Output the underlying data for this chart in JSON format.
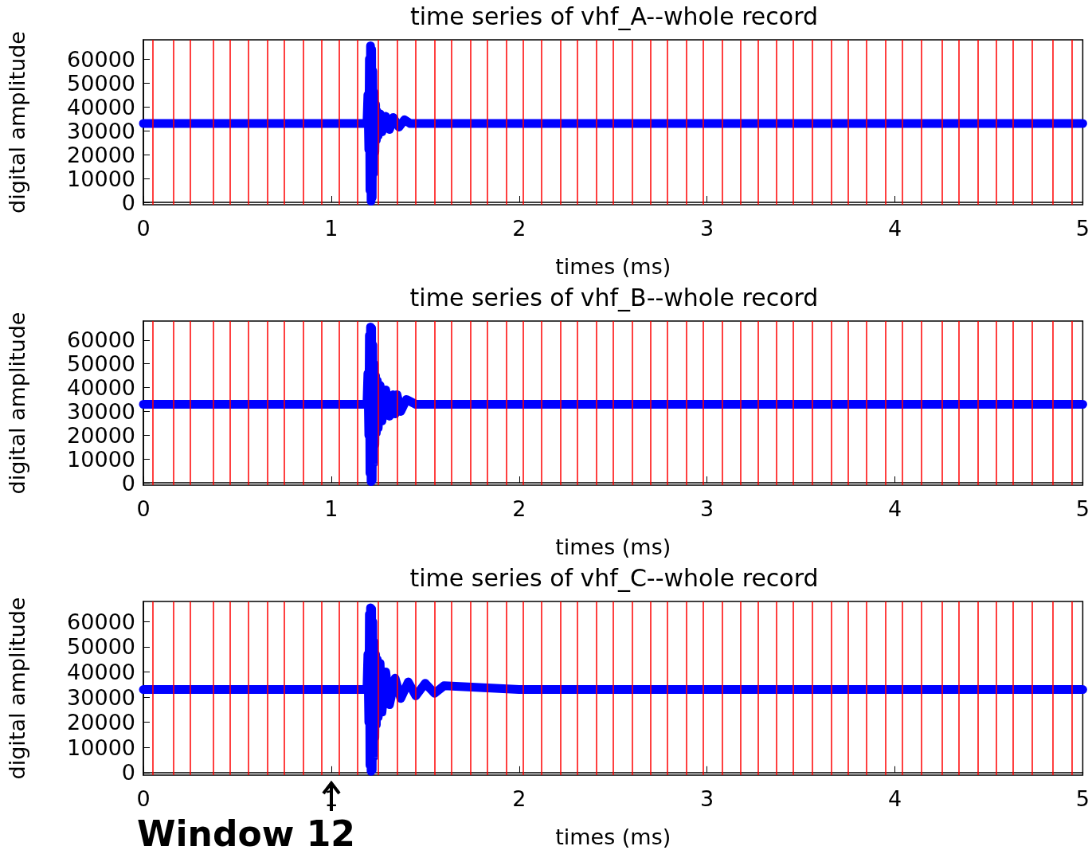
{
  "chart_data": [
    {
      "type": "line",
      "title": "time series of vhf_A--whole record",
      "xlabel": "times (ms)",
      "ylabel": "digital amplitude",
      "xlim": [
        0,
        5
      ],
      "xticks": [
        0,
        1,
        2,
        3,
        4,
        5
      ],
      "ylim": [
        -1000,
        68000
      ],
      "yticks": [
        0,
        10000,
        20000,
        30000,
        40000,
        50000,
        60000
      ],
      "series": [
        {
          "color": "#0000ff",
          "x": [
            0,
            1.0,
            1.19,
            1.195,
            1.2,
            1.203,
            1.206,
            1.209,
            1.212,
            1.215,
            1.218,
            1.221,
            1.224,
            1.228,
            1.232,
            1.236,
            1.24,
            1.245,
            1.25,
            1.26,
            1.27,
            1.29,
            1.31,
            1.33,
            1.36,
            1.39,
            1.42,
            2.0,
            3.0,
            4.0,
            5
          ],
          "values": [
            33000,
            33000,
            33000,
            45000,
            22000,
            60000,
            5000,
            65500,
            500,
            64000,
            2000,
            55000,
            12000,
            46000,
            21000,
            41000,
            26000,
            38000,
            28000,
            37000,
            29500,
            36000,
            30500,
            35500,
            31500,
            34500,
            33000,
            33000,
            33000,
            33000,
            33000
          ]
        }
      ],
      "ref_lines": [
        {
          "axis": "x",
          "value": 0.05,
          "color": "#ff0000"
        },
        {
          "axis": "x",
          "value": 0.16,
          "color": "#ff0000"
        },
        {
          "axis": "x",
          "value": 0.25,
          "color": "#ff0000"
        },
        {
          "axis": "x",
          "value": 0.37,
          "color": "#ff0000"
        },
        {
          "axis": "x",
          "value": 0.46,
          "color": "#ff0000"
        },
        {
          "axis": "x",
          "value": 0.56,
          "color": "#ff0000"
        },
        {
          "axis": "x",
          "value": 0.66,
          "color": "#ff0000"
        },
        {
          "axis": "x",
          "value": 0.75,
          "color": "#ff0000"
        },
        {
          "axis": "x",
          "value": 0.85,
          "color": "#ff0000"
        },
        {
          "axis": "x",
          "value": 0.95,
          "color": "#ff0000"
        },
        {
          "axis": "x",
          "value": 1.04,
          "color": "#ff0000"
        },
        {
          "axis": "x",
          "value": 1.14,
          "color": "#ff0000"
        },
        {
          "axis": "x",
          "value": 1.25,
          "color": "#ff0000"
        },
        {
          "axis": "x",
          "value": 1.35,
          "color": "#ff0000"
        },
        {
          "axis": "x",
          "value": 1.45,
          "color": "#ff0000"
        },
        {
          "axis": "x",
          "value": 1.55,
          "color": "#ff0000"
        },
        {
          "axis": "x",
          "value": 1.64,
          "color": "#ff0000"
        },
        {
          "axis": "x",
          "value": 1.74,
          "color": "#ff0000"
        },
        {
          "axis": "x",
          "value": 1.83,
          "color": "#ff0000"
        },
        {
          "axis": "x",
          "value": 1.93,
          "color": "#ff0000"
        },
        {
          "axis": "x",
          "value": 2.02,
          "color": "#ff0000"
        },
        {
          "axis": "x",
          "value": 2.12,
          "color": "#ff0000"
        },
        {
          "axis": "x",
          "value": 2.22,
          "color": "#ff0000"
        },
        {
          "axis": "x",
          "value": 2.31,
          "color": "#ff0000"
        },
        {
          "axis": "x",
          "value": 2.41,
          "color": "#ff0000"
        },
        {
          "axis": "x",
          "value": 2.5,
          "color": "#ff0000"
        },
        {
          "axis": "x",
          "value": 2.6,
          "color": "#ff0000"
        },
        {
          "axis": "x",
          "value": 2.7,
          "color": "#ff0000"
        },
        {
          "axis": "x",
          "value": 2.79,
          "color": "#ff0000"
        },
        {
          "axis": "x",
          "value": 2.89,
          "color": "#ff0000"
        },
        {
          "axis": "x",
          "value": 2.98,
          "color": "#ff0000"
        },
        {
          "axis": "x",
          "value": 3.08,
          "color": "#ff0000"
        },
        {
          "axis": "x",
          "value": 3.18,
          "color": "#ff0000"
        },
        {
          "axis": "x",
          "value": 3.27,
          "color": "#ff0000"
        },
        {
          "axis": "x",
          "value": 3.37,
          "color": "#ff0000"
        },
        {
          "axis": "x",
          "value": 3.46,
          "color": "#ff0000"
        },
        {
          "axis": "x",
          "value": 3.56,
          "color": "#ff0000"
        },
        {
          "axis": "x",
          "value": 3.66,
          "color": "#ff0000"
        },
        {
          "axis": "x",
          "value": 3.75,
          "color": "#ff0000"
        },
        {
          "axis": "x",
          "value": 3.85,
          "color": "#ff0000"
        },
        {
          "axis": "x",
          "value": 3.95,
          "color": "#ff0000"
        },
        {
          "axis": "x",
          "value": 4.04,
          "color": "#ff0000"
        },
        {
          "axis": "x",
          "value": 4.14,
          "color": "#ff0000"
        },
        {
          "axis": "x",
          "value": 4.25,
          "color": "#ff0000"
        },
        {
          "axis": "x",
          "value": 4.34,
          "color": "#ff0000"
        },
        {
          "axis": "x",
          "value": 4.44,
          "color": "#ff0000"
        },
        {
          "axis": "x",
          "value": 4.54,
          "color": "#ff0000"
        },
        {
          "axis": "x",
          "value": 4.63,
          "color": "#ff0000"
        },
        {
          "axis": "x",
          "value": 4.73,
          "color": "#ff0000"
        },
        {
          "axis": "x",
          "value": 4.84,
          "color": "#ff0000"
        },
        {
          "axis": "x",
          "value": 4.94,
          "color": "#ff0000"
        }
      ]
    },
    {
      "type": "line",
      "title": "time series of vhf_B--whole record",
      "xlabel": "times (ms)",
      "ylabel": "digital amplitude",
      "xlim": [
        0,
        5
      ],
      "xticks": [
        0,
        1,
        2,
        3,
        4,
        5
      ],
      "ylim": [
        -1000,
        68000
      ],
      "yticks": [
        0,
        10000,
        20000,
        30000,
        40000,
        50000,
        60000
      ],
      "series": [
        {
          "color": "#0000ff",
          "x": [
            0,
            1.0,
            1.19,
            1.195,
            1.2,
            1.203,
            1.206,
            1.209,
            1.212,
            1.215,
            1.218,
            1.221,
            1.224,
            1.228,
            1.232,
            1.236,
            1.24,
            1.245,
            1.25,
            1.26,
            1.27,
            1.29,
            1.31,
            1.33,
            1.34,
            1.35,
            1.37,
            1.4,
            1.45,
            2.0,
            3.0,
            4.0,
            5
          ],
          "values": [
            33000,
            33000,
            33000,
            46000,
            20000,
            62000,
            4000,
            65500,
            500,
            65000,
            1000,
            58000,
            8000,
            50000,
            16000,
            45000,
            21000,
            43000,
            23000,
            41000,
            26000,
            39000,
            28000,
            37000,
            29000,
            37000,
            30000,
            35000,
            33000,
            33000,
            33000,
            33000,
            33000
          ]
        }
      ],
      "ref_lines": [
        {
          "axis": "x",
          "value": 0.05,
          "color": "#ff0000"
        },
        {
          "axis": "x",
          "value": 0.16,
          "color": "#ff0000"
        },
        {
          "axis": "x",
          "value": 0.25,
          "color": "#ff0000"
        },
        {
          "axis": "x",
          "value": 0.37,
          "color": "#ff0000"
        },
        {
          "axis": "x",
          "value": 0.46,
          "color": "#ff0000"
        },
        {
          "axis": "x",
          "value": 0.56,
          "color": "#ff0000"
        },
        {
          "axis": "x",
          "value": 0.66,
          "color": "#ff0000"
        },
        {
          "axis": "x",
          "value": 0.75,
          "color": "#ff0000"
        },
        {
          "axis": "x",
          "value": 0.85,
          "color": "#ff0000"
        },
        {
          "axis": "x",
          "value": 0.95,
          "color": "#ff0000"
        },
        {
          "axis": "x",
          "value": 1.04,
          "color": "#ff0000"
        },
        {
          "axis": "x",
          "value": 1.14,
          "color": "#ff0000"
        },
        {
          "axis": "x",
          "value": 1.25,
          "color": "#ff0000"
        },
        {
          "axis": "x",
          "value": 1.35,
          "color": "#ff0000"
        },
        {
          "axis": "x",
          "value": 1.45,
          "color": "#ff0000"
        },
        {
          "axis": "x",
          "value": 1.55,
          "color": "#ff0000"
        },
        {
          "axis": "x",
          "value": 1.64,
          "color": "#ff0000"
        },
        {
          "axis": "x",
          "value": 1.74,
          "color": "#ff0000"
        },
        {
          "axis": "x",
          "value": 1.83,
          "color": "#ff0000"
        },
        {
          "axis": "x",
          "value": 1.93,
          "color": "#ff0000"
        },
        {
          "axis": "x",
          "value": 2.02,
          "color": "#ff0000"
        },
        {
          "axis": "x",
          "value": 2.12,
          "color": "#ff0000"
        },
        {
          "axis": "x",
          "value": 2.22,
          "color": "#ff0000"
        },
        {
          "axis": "x",
          "value": 2.31,
          "color": "#ff0000"
        },
        {
          "axis": "x",
          "value": 2.41,
          "color": "#ff0000"
        },
        {
          "axis": "x",
          "value": 2.5,
          "color": "#ff0000"
        },
        {
          "axis": "x",
          "value": 2.6,
          "color": "#ff0000"
        },
        {
          "axis": "x",
          "value": 2.7,
          "color": "#ff0000"
        },
        {
          "axis": "x",
          "value": 2.79,
          "color": "#ff0000"
        },
        {
          "axis": "x",
          "value": 2.89,
          "color": "#ff0000"
        },
        {
          "axis": "x",
          "value": 2.98,
          "color": "#ff0000"
        },
        {
          "axis": "x",
          "value": 3.08,
          "color": "#ff0000"
        },
        {
          "axis": "x",
          "value": 3.18,
          "color": "#ff0000"
        },
        {
          "axis": "x",
          "value": 3.27,
          "color": "#ff0000"
        },
        {
          "axis": "x",
          "value": 3.37,
          "color": "#ff0000"
        },
        {
          "axis": "x",
          "value": 3.46,
          "color": "#ff0000"
        },
        {
          "axis": "x",
          "value": 3.56,
          "color": "#ff0000"
        },
        {
          "axis": "x",
          "value": 3.66,
          "color": "#ff0000"
        },
        {
          "axis": "x",
          "value": 3.75,
          "color": "#ff0000"
        },
        {
          "axis": "x",
          "value": 3.85,
          "color": "#ff0000"
        },
        {
          "axis": "x",
          "value": 3.95,
          "color": "#ff0000"
        },
        {
          "axis": "x",
          "value": 4.04,
          "color": "#ff0000"
        },
        {
          "axis": "x",
          "value": 4.14,
          "color": "#ff0000"
        },
        {
          "axis": "x",
          "value": 4.25,
          "color": "#ff0000"
        },
        {
          "axis": "x",
          "value": 4.34,
          "color": "#ff0000"
        },
        {
          "axis": "x",
          "value": 4.44,
          "color": "#ff0000"
        },
        {
          "axis": "x",
          "value": 4.54,
          "color": "#ff0000"
        },
        {
          "axis": "x",
          "value": 4.63,
          "color": "#ff0000"
        },
        {
          "axis": "x",
          "value": 4.73,
          "color": "#ff0000"
        },
        {
          "axis": "x",
          "value": 4.84,
          "color": "#ff0000"
        },
        {
          "axis": "x",
          "value": 4.94,
          "color": "#ff0000"
        }
      ]
    },
    {
      "type": "line",
      "title": "time series of vhf_C--whole record",
      "xlabel": "times (ms)",
      "ylabel": "digital amplitude",
      "xlim": [
        0,
        5
      ],
      "xticks": [
        0,
        1,
        2,
        3,
        4,
        5
      ],
      "ylim": [
        -1000,
        68000
      ],
      "yticks": [
        0,
        10000,
        20000,
        30000,
        40000,
        50000,
        60000
      ],
      "annotations": [
        "Window 12"
      ],
      "series": [
        {
          "color": "#0000ff",
          "x": [
            0,
            1.0,
            1.19,
            1.195,
            1.2,
            1.203,
            1.206,
            1.209,
            1.212,
            1.215,
            1.218,
            1.221,
            1.224,
            1.228,
            1.232,
            1.236,
            1.24,
            1.245,
            1.25,
            1.26,
            1.27,
            1.29,
            1.31,
            1.34,
            1.37,
            1.41,
            1.45,
            1.5,
            1.55,
            1.6,
            2.0,
            3.0,
            4.0,
            5
          ],
          "values": [
            33000,
            33000,
            33000,
            47000,
            20000,
            63000,
            3000,
            65500,
            500,
            65000,
            1000,
            60000,
            6000,
            52000,
            14000,
            47000,
            19000,
            45000,
            22000,
            43500,
            24000,
            40000,
            27000,
            37500,
            29500,
            36000,
            30500,
            35500,
            31500,
            34500,
            33000,
            33000,
            33000,
            33000
          ]
        }
      ],
      "ref_lines": [
        {
          "axis": "x",
          "value": 0.05,
          "color": "#ff0000"
        },
        {
          "axis": "x",
          "value": 0.16,
          "color": "#ff0000"
        },
        {
          "axis": "x",
          "value": 0.25,
          "color": "#ff0000"
        },
        {
          "axis": "x",
          "value": 0.37,
          "color": "#ff0000"
        },
        {
          "axis": "x",
          "value": 0.46,
          "color": "#ff0000"
        },
        {
          "axis": "x",
          "value": 0.56,
          "color": "#ff0000"
        },
        {
          "axis": "x",
          "value": 0.66,
          "color": "#ff0000"
        },
        {
          "axis": "x",
          "value": 0.75,
          "color": "#ff0000"
        },
        {
          "axis": "x",
          "value": 0.85,
          "color": "#ff0000"
        },
        {
          "axis": "x",
          "value": 0.95,
          "color": "#ff0000"
        },
        {
          "axis": "x",
          "value": 1.04,
          "color": "#ff0000"
        },
        {
          "axis": "x",
          "value": 1.14,
          "color": "#ff0000"
        },
        {
          "axis": "x",
          "value": 1.25,
          "color": "#ff0000"
        },
        {
          "axis": "x",
          "value": 1.35,
          "color": "#ff0000"
        },
        {
          "axis": "x",
          "value": 1.45,
          "color": "#ff0000"
        },
        {
          "axis": "x",
          "value": 1.55,
          "color": "#ff0000"
        },
        {
          "axis": "x",
          "value": 1.64,
          "color": "#ff0000"
        },
        {
          "axis": "x",
          "value": 1.74,
          "color": "#ff0000"
        },
        {
          "axis": "x",
          "value": 1.83,
          "color": "#ff0000"
        },
        {
          "axis": "x",
          "value": 1.93,
          "color": "#ff0000"
        },
        {
          "axis": "x",
          "value": 2.02,
          "color": "#ff0000"
        },
        {
          "axis": "x",
          "value": 2.12,
          "color": "#ff0000"
        },
        {
          "axis": "x",
          "value": 2.22,
          "color": "#ff0000"
        },
        {
          "axis": "x",
          "value": 2.31,
          "color": "#ff0000"
        },
        {
          "axis": "x",
          "value": 2.41,
          "color": "#ff0000"
        },
        {
          "axis": "x",
          "value": 2.5,
          "color": "#ff0000"
        },
        {
          "axis": "x",
          "value": 2.6,
          "color": "#ff0000"
        },
        {
          "axis": "x",
          "value": 2.7,
          "color": "#ff0000"
        },
        {
          "axis": "x",
          "value": 2.79,
          "color": "#ff0000"
        },
        {
          "axis": "x",
          "value": 2.89,
          "color": "#ff0000"
        },
        {
          "axis": "x",
          "value": 2.98,
          "color": "#ff0000"
        },
        {
          "axis": "x",
          "value": 3.08,
          "color": "#ff0000"
        },
        {
          "axis": "x",
          "value": 3.18,
          "color": "#ff0000"
        },
        {
          "axis": "x",
          "value": 3.27,
          "color": "#ff0000"
        },
        {
          "axis": "x",
          "value": 3.37,
          "color": "#ff0000"
        },
        {
          "axis": "x",
          "value": 3.46,
          "color": "#ff0000"
        },
        {
          "axis": "x",
          "value": 3.56,
          "color": "#ff0000"
        },
        {
          "axis": "x",
          "value": 3.66,
          "color": "#ff0000"
        },
        {
          "axis": "x",
          "value": 3.75,
          "color": "#ff0000"
        },
        {
          "axis": "x",
          "value": 3.85,
          "color": "#ff0000"
        },
        {
          "axis": "x",
          "value": 3.95,
          "color": "#ff0000"
        },
        {
          "axis": "x",
          "value": 4.04,
          "color": "#ff0000"
        },
        {
          "axis": "x",
          "value": 4.14,
          "color": "#ff0000"
        },
        {
          "axis": "x",
          "value": 4.25,
          "color": "#ff0000"
        },
        {
          "axis": "x",
          "value": 4.34,
          "color": "#ff0000"
        },
        {
          "axis": "x",
          "value": 4.44,
          "color": "#ff0000"
        },
        {
          "axis": "x",
          "value": 4.54,
          "color": "#ff0000"
        },
        {
          "axis": "x",
          "value": 4.63,
          "color": "#ff0000"
        },
        {
          "axis": "x",
          "value": 4.73,
          "color": "#ff0000"
        },
        {
          "axis": "x",
          "value": 4.84,
          "color": "#ff0000"
        },
        {
          "axis": "x",
          "value": 4.94,
          "color": "#ff0000"
        }
      ]
    }
  ]
}
